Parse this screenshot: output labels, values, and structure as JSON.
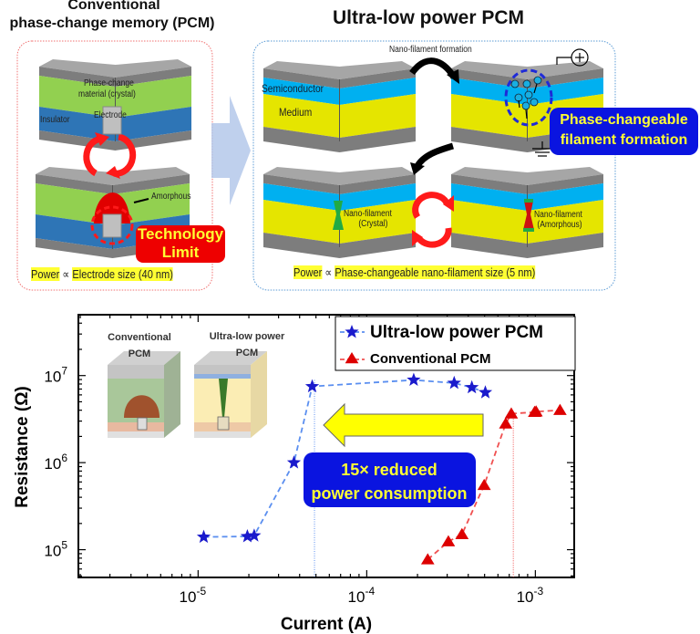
{
  "diagram": {
    "left_title_line1": "Conventional",
    "left_title_line2": "phase-change memory (PCM)",
    "right_title": "Ultra-low power PCM",
    "left_labels": {
      "phase_change": "Phase-change",
      "material": "material (crystal)",
      "electrode": "Electrode",
      "insulator": "Insulator",
      "amorphous": "Amorphous",
      "technology_limit_1": "Technology",
      "technology_limit_2": "Limit",
      "power_prefix": "Power",
      "power_rel": "∝",
      "power_text": "Electrode size (40 nm)"
    },
    "right_labels": {
      "nano_filament_formation": "Nano-filament formation",
      "semiconductor": "Semiconductor",
      "medium": "Medium",
      "callout_1": "Phase-changeable",
      "callout_2": "filament formation",
      "crystal_1": "Nano-filament",
      "crystal_2": "(Crystal)",
      "amorphous_1": "Nano-filament",
      "amorphous_2": "(Amorphous)",
      "power_prefix": "Power",
      "power_rel": "∝",
      "power_text": "Phase-changeable nano-filament size (5 nm)"
    },
    "colors": {
      "gray": "#7d7d7d",
      "green": "#92d050",
      "blue": "#2e75b6",
      "cyan": "#00b0f0",
      "yellow": "#e5e500",
      "red": "#ee0000"
    }
  },
  "chart_data": {
    "type": "scatter",
    "xlabel": "Current (A)",
    "ylabel": "Resistance (Ω)",
    "x_scale": "log",
    "y_scale": "log",
    "xlim": [
      1.95e-06,
      0.0017
    ],
    "ylim": [
      48000.0,
      50000000.0
    ],
    "x_ticks": [
      {
        "value": 1e-05,
        "base": "10",
        "exp": "-5"
      },
      {
        "value": 0.0001,
        "base": "10",
        "exp": "-4"
      },
      {
        "value": 0.001,
        "base": "10",
        "exp": "-3"
      }
    ],
    "y_ticks": [
      {
        "value": 100000.0,
        "base": "10",
        "exp": "5"
      },
      {
        "value": 1000000.0,
        "base": "10",
        "exp": "6"
      },
      {
        "value": 10000000.0,
        "base": "10",
        "exp": "7"
      }
    ],
    "grid": false,
    "legend_position": "top-right",
    "series": [
      {
        "name": "Ultra-low power PCM",
        "marker": "star",
        "color": "#1a1acc",
        "line_color": "#5b8ff0",
        "x": [
          1.08e-05,
          1.96e-05,
          2.15e-05,
          3.7e-05,
          4.75e-05,
          0.00019,
          0.00033,
          0.00042,
          0.000505
        ],
        "y": [
          140000.0,
          142000.0,
          145000.0,
          1000000.0,
          7500000.0,
          8900000.0,
          8200000.0,
          7300000.0,
          6400000.0
        ],
        "threshold_current": 4.9e-05
      },
      {
        "name": "Conventional PCM",
        "marker": "triangle",
        "color": "#dd0000",
        "line_color": "#f05050",
        "x": [
          0.00023,
          0.000305,
          0.000367,
          0.000497,
          0.000667,
          0.00072,
          0.00099,
          0.00101,
          0.0014
        ],
        "y": [
          77000.0,
          124000.0,
          150000.0,
          550000.0,
          2800000.0,
          3650000.0,
          3800000.0,
          3850000.0,
          4000000.0
        ],
        "threshold_current": 0.00074
      }
    ],
    "annotations": {
      "inset_conventional_1": "Conventional",
      "inset_conventional_2": "PCM",
      "inset_ultra_1": "Ultra-low power",
      "inset_ultra_2": "PCM",
      "callout_1": "15× reduced",
      "callout_2": "power consumption"
    }
  }
}
